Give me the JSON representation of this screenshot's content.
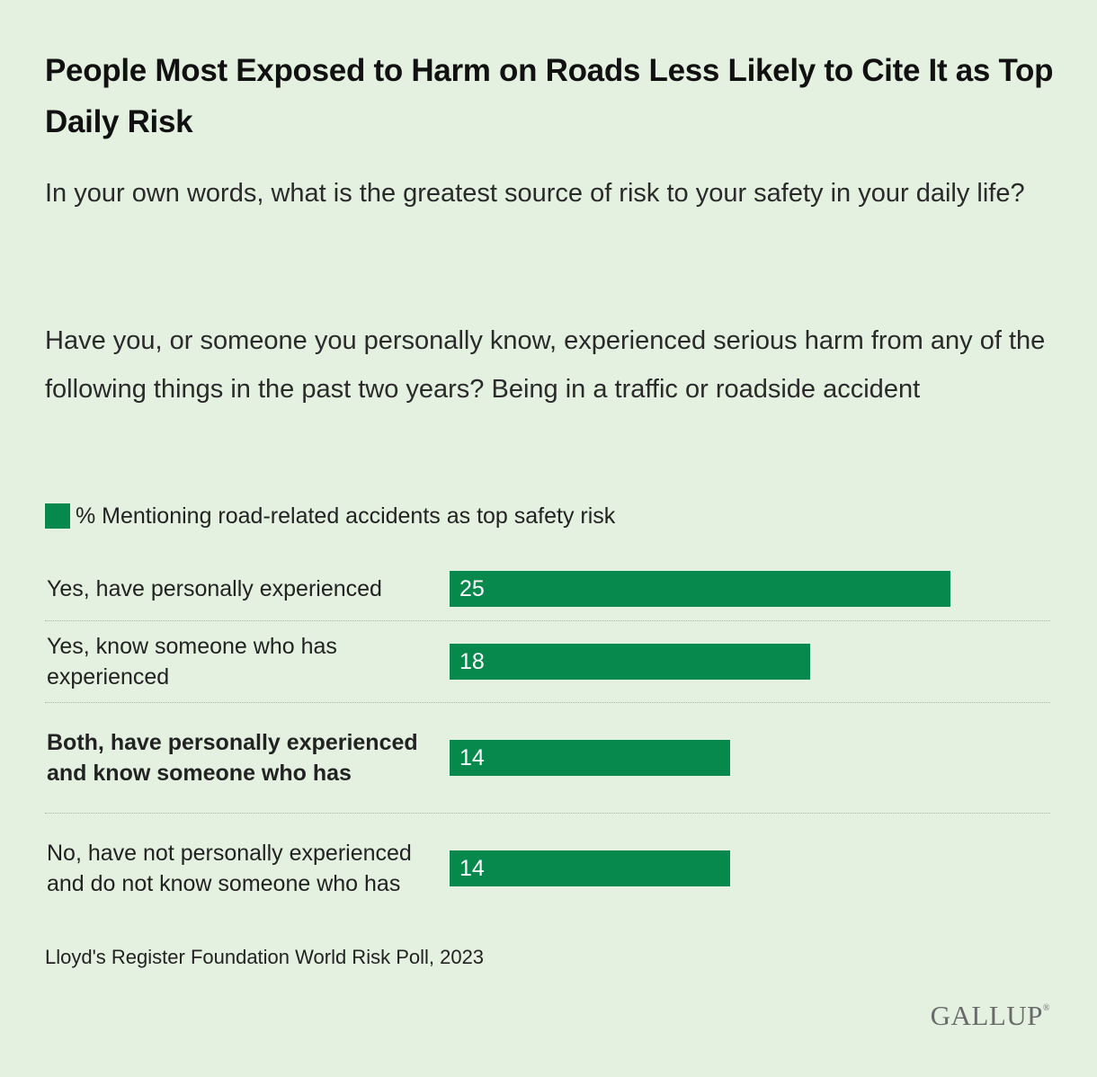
{
  "title": "People Most Exposed to Harm on Roads Less Likely to Cite It as Top Daily Risk",
  "questions": [
    "In your own words, what is the greatest source of risk to your safety in your daily life?",
    "Have you, or someone you personally know, experienced serious harm from any of the following things in the past two years? Being in a traffic or roadside accident"
  ],
  "legend_label": "% Mentioning road-related accidents as top safety risk",
  "source": "Lloyd's Register Foundation World Risk Poll, 2023",
  "logo_text": "GALLUP",
  "colors": {
    "bar": "#07884d",
    "background": "#e4f1e1"
  },
  "chart_data": {
    "type": "bar",
    "orientation": "horizontal",
    "categories": [
      "Yes, have personally experienced",
      "Yes, know someone who has experienced",
      "Both, have personally experienced and know someone who has",
      "No, have not personally experienced and do not know someone who has"
    ],
    "values": [
      25,
      18,
      14,
      14
    ],
    "bold_category_index": 2,
    "xlim": [
      0,
      30
    ],
    "grid": false
  }
}
